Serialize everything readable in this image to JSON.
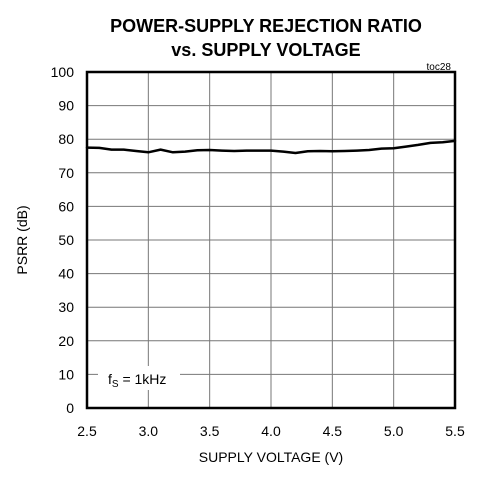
{
  "chart_data": {
    "type": "line",
    "title": "POWER-SUPPLY REJECTION RATIO",
    "subtitle": "vs. SUPPLY VOLTAGE",
    "xlabel": "SUPPLY VOLTAGE (V)",
    "ylabel": "PSRR (dB)",
    "xlim": [
      2.5,
      5.5
    ],
    "ylim": [
      0,
      100
    ],
    "x_ticks": [
      "2.5",
      "3.0",
      "3.5",
      "4.0",
      "4.5",
      "5.0",
      "5.5"
    ],
    "y_ticks": [
      "0",
      "10",
      "20",
      "30",
      "40",
      "50",
      "60",
      "70",
      "80",
      "90",
      "100"
    ],
    "grid": true,
    "corner_label": "toc28",
    "annotation": {
      "f_symbol": "f",
      "f_subscript": "S",
      "f_value": " = 1kHz"
    },
    "series": [
      {
        "x": [
          2.5,
          2.6,
          2.7,
          2.8,
          2.9,
          3.0,
          3.1,
          3.2,
          3.3,
          3.4,
          3.5,
          3.6,
          3.7,
          3.8,
          3.9,
          4.0,
          4.1,
          4.2,
          4.3,
          4.4,
          4.5,
          4.6,
          4.7,
          4.8,
          4.9,
          5.0,
          5.1,
          5.2,
          5.3,
          5.4,
          5.5
        ],
        "y": [
          77.5,
          77.4,
          76.9,
          76.9,
          76.5,
          76.1,
          76.9,
          76.1,
          76.3,
          76.7,
          76.8,
          76.6,
          76.5,
          76.6,
          76.6,
          76.6,
          76.3,
          75.9,
          76.4,
          76.5,
          76.4,
          76.5,
          76.6,
          76.8,
          77.2,
          77.3,
          77.8,
          78.3,
          78.9,
          79.1,
          79.5
        ]
      }
    ]
  }
}
